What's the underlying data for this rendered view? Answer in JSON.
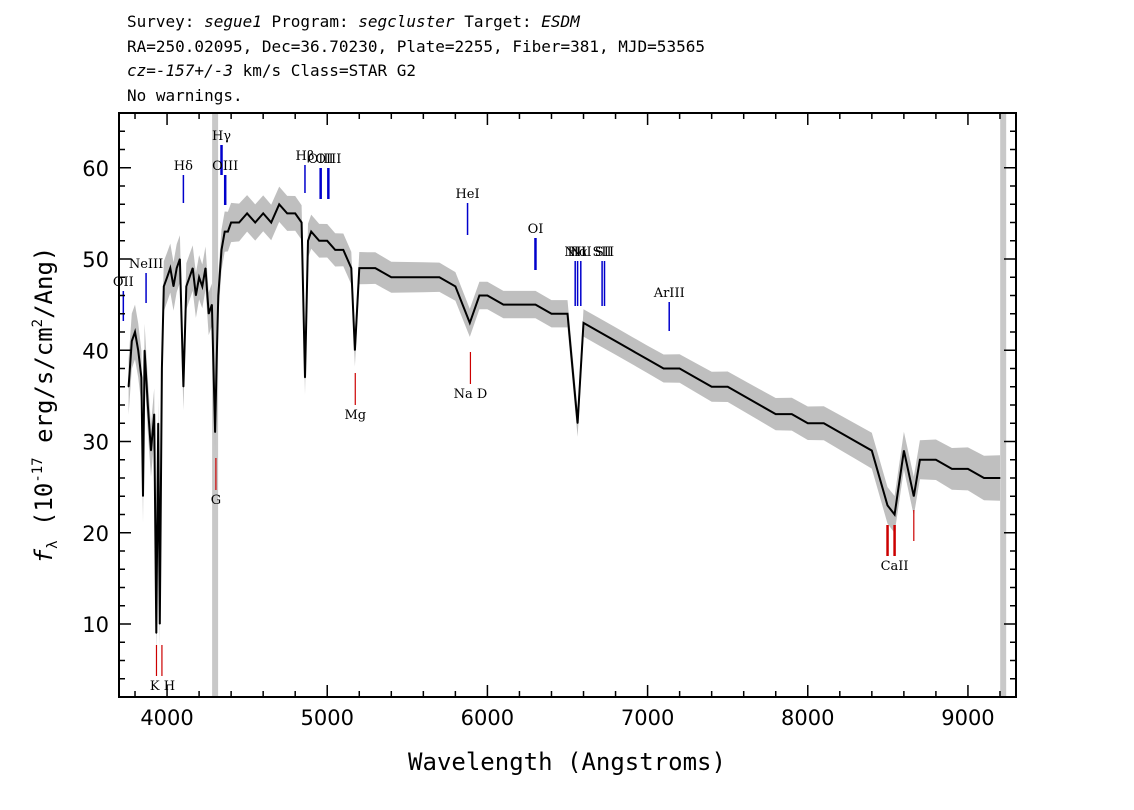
{
  "header": {
    "line1": {
      "survey_label": "Survey:",
      "survey": "segue1",
      "program_label": "Program:",
      "program": "segcluster",
      "target_label": "Target:",
      "target": "ESDM"
    },
    "line2": "RA=250.02095, Dec=36.70230, Plate=2255, Fiber=381, MJD=53565",
    "line3": {
      "cz": "cz=-157+/-3",
      "rest": "km/s Class=STAR G2"
    },
    "line4": "No warnings."
  },
  "chart_data": {
    "type": "line",
    "xlabel": "Wavelength (Angstroms)",
    "ylabel": "f_λ (10^-17 erg/s/cm^2/Ang)",
    "xlim": [
      3700,
      9300
    ],
    "ylim": [
      2,
      66
    ],
    "xticks": [
      4000,
      5000,
      6000,
      7000,
      8000,
      9000
    ],
    "yticks": [
      10,
      20,
      30,
      40,
      50,
      60
    ],
    "series": [
      {
        "color": "#000000",
        "x": [
          3760,
          3780,
          3800,
          3820,
          3840,
          3850,
          3860,
          3880,
          3900,
          3920,
          3933,
          3945,
          3955,
          3968,
          3980,
          4000,
          4020,
          4040,
          4060,
          4080,
          4102,
          4120,
          4140,
          4160,
          4180,
          4200,
          4220,
          4240,
          4260,
          4280,
          4300,
          4310,
          4320,
          4340,
          4360,
          4380,
          4400,
          4450,
          4500,
          4550,
          4600,
          4650,
          4700,
          4750,
          4800,
          4840,
          4861,
          4880,
          4900,
          4950,
          5000,
          5050,
          5100,
          5150,
          5173,
          5200,
          5250,
          5300,
          5400,
          5500,
          5600,
          5700,
          5800,
          5890,
          5950,
          6000,
          6100,
          6200,
          6300,
          6400,
          6500,
          6563,
          6600,
          6700,
          6800,
          6900,
          7000,
          7100,
          7200,
          7300,
          7400,
          7500,
          7600,
          7700,
          7800,
          7900,
          8000,
          8100,
          8200,
          8300,
          8400,
          8498,
          8542,
          8600,
          8662,
          8700,
          8800,
          8900,
          9000,
          9100,
          9200
        ],
        "values": [
          36,
          41,
          42,
          40,
          37,
          24,
          40,
          34,
          29,
          33,
          9,
          32,
          10,
          38,
          47,
          48,
          49,
          47,
          49,
          50,
          36,
          47,
          48,
          49,
          46,
          48,
          47,
          49,
          44,
          45,
          31,
          39,
          46,
          51,
          53,
          53,
          54,
          54,
          55,
          54,
          55,
          54,
          56,
          55,
          55,
          54,
          37,
          52,
          53,
          52,
          52,
          51,
          51,
          49,
          40,
          49,
          49,
          49,
          48,
          48,
          48,
          48,
          47,
          43,
          46,
          46,
          45,
          45,
          45,
          44,
          44,
          32,
          43,
          42,
          41,
          40,
          39,
          38,
          38,
          37,
          36,
          36,
          35,
          34,
          33,
          33,
          32,
          32,
          31,
          30,
          29,
          23,
          22,
          29,
          24,
          28,
          28,
          27,
          27,
          26,
          26
        ]
      },
      {
        "name": "error",
        "color": "#bfbfbf",
        "x": [
          3800,
          4500,
          6000,
          7000,
          8500,
          9200
        ],
        "values": [
          3,
          2,
          1.5,
          1.5,
          2,
          2.5
        ]
      }
    ],
    "emission_lines": [
      {
        "label": "OII",
        "wavelength": 3727
      },
      {
        "label": "NeIII",
        "wavelength": 3869
      },
      {
        "label": "Hδ",
        "wavelength": 4102
      },
      {
        "label": "Hγ",
        "wavelength": 4340
      },
      {
        "label": "OIII",
        "wavelength": 4363
      },
      {
        "label": "Hβ",
        "wavelength": 4861
      },
      {
        "label": "OIII",
        "wavelength": 4959
      },
      {
        "label": "OIII",
        "wavelength": 5007
      },
      {
        "label": "HeI",
        "wavelength": 5876
      },
      {
        "label": "OI",
        "wavelength": 6300
      },
      {
        "label": "NII",
        "wavelength": 6548
      },
      {
        "label": "Hα",
        "wavelength": 6563
      },
      {
        "label": "NII",
        "wavelength": 6583
      },
      {
        "label": "SII",
        "wavelength": 6716
      },
      {
        "label": "SII",
        "wavelength": 6731
      },
      {
        "label": "ArIII",
        "wavelength": 7135
      }
    ],
    "absorption_lines": [
      {
        "label": "K",
        "wavelength": 3934
      },
      {
        "label": "H",
        "wavelength": 3968
      },
      {
        "label": "G",
        "wavelength": 4305
      },
      {
        "label": "Mg",
        "wavelength": 5175
      },
      {
        "label": "Na D",
        "wavelength": 5894
      },
      {
        "label": "CaII",
        "wavelength": 8498
      },
      {
        "label": "CaII",
        "wavelength": 8542
      },
      {
        "label": "CaII",
        "wavelength": 8662
      }
    ],
    "masked_regions": [
      4300,
      9220
    ],
    "colors": {
      "emission": "#0000cc",
      "absorption": "#cc0000",
      "flux": "#000000",
      "error": "#bfbfbf",
      "mask": "#c8c8c8"
    }
  }
}
